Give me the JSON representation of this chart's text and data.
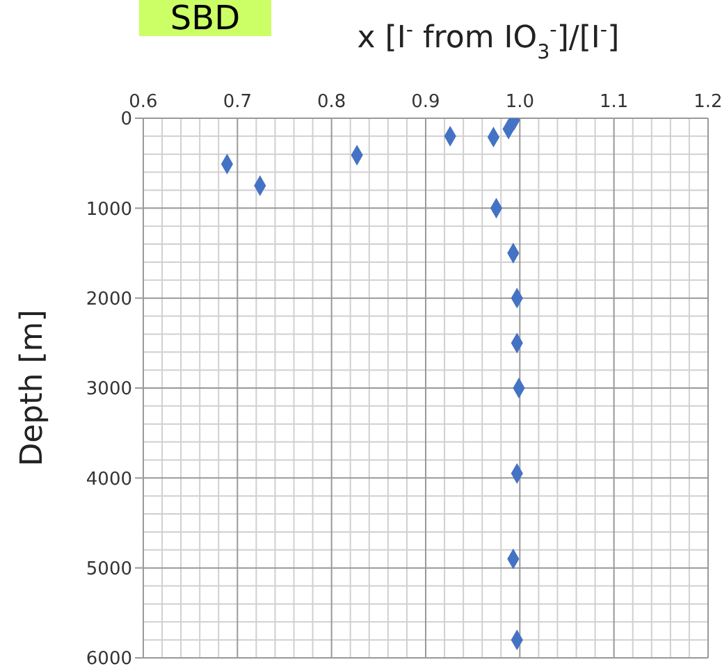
{
  "chart_data": {
    "type": "scatter",
    "title": "SBD",
    "xlabel": "x   [I$^{-}$ from IO$_{3}$$^{-}$]/[I$^{-}$]",
    "ylabel": "Depth [m]",
    "x": [
      0.994,
      0.988,
      0.972,
      0.926,
      0.827,
      0.689,
      0.724,
      0.975,
      0.993,
      0.997,
      0.997,
      0.999,
      0.997,
      0.993,
      0.997
    ],
    "series": [
      {
        "color": "#4472c4",
        "values": [
          20,
          120,
          210,
          200,
          410,
          510,
          750,
          1000,
          1500,
          2000,
          2500,
          3000,
          3950,
          4900,
          5800
        ]
      }
    ],
    "xlim": [
      0.6,
      1.2
    ],
    "xticks": [
      0.6,
      0.7,
      0.8,
      0.9,
      {
        "value": 1,
        "label": "1.0"
      },
      1.1,
      1.2
    ],
    "ylim": [
      6000,
      0
    ],
    "yticks": [
      0,
      1000,
      2000,
      3000,
      4000,
      5000,
      6000
    ],
    "grid": true,
    "marker": "diamond"
  }
}
